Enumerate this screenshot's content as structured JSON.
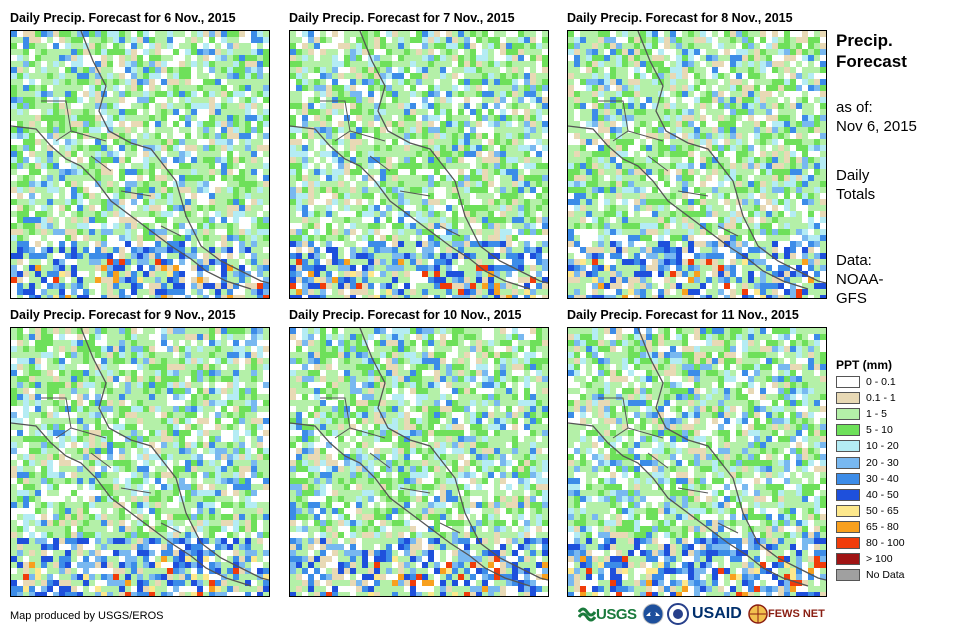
{
  "maps": [
    {
      "title": "Daily Precip. Forecast for 6 Nov., 2015"
    },
    {
      "title": "Daily Precip. Forecast for 7 Nov., 2015"
    },
    {
      "title": "Daily Precip. Forecast for 8 Nov., 2015"
    },
    {
      "title": "Daily Precip. Forecast for 9 Nov., 2015"
    },
    {
      "title": "Daily Precip. Forecast for 10 Nov., 2015"
    },
    {
      "title": "Daily Precip. Forecast for 11 Nov., 2015"
    }
  ],
  "sidebar": {
    "title_line1": "Precip.",
    "title_line2": "Forecast",
    "asof_line1": "as of:",
    "asof_line2": "Nov 6, 2015",
    "totals_line1": "Daily",
    "totals_line2": "Totals",
    "data_line1": "Data:",
    "data_line2": "NOAA-",
    "data_line3": "GFS"
  },
  "legend": {
    "title": "PPT (mm)",
    "items": [
      {
        "label": "0 - 0.1",
        "color": "#ffffff"
      },
      {
        "label": "0.1 - 1",
        "color": "#e8d9b5"
      },
      {
        "label": "1 - 5",
        "color": "#b4f0a8"
      },
      {
        "label": "5 - 10",
        "color": "#6ee05a"
      },
      {
        "label": "10 - 20",
        "color": "#b4ecf4"
      },
      {
        "label": "20 - 30",
        "color": "#78b8f0"
      },
      {
        "label": "30 - 40",
        "color": "#3c8ce8"
      },
      {
        "label": "40 - 50",
        "color": "#1e50dc"
      },
      {
        "label": "50 - 65",
        "color": "#fde88c"
      },
      {
        "label": "65 - 80",
        "color": "#f8a01e"
      },
      {
        "label": "80 - 100",
        "color": "#f03c0a"
      },
      {
        "label": "> 100",
        "color": "#a01414"
      },
      {
        "label": "No Data",
        "color": "#a0a0a0"
      }
    ]
  },
  "credit": "Map produced by USGS/EROS",
  "logos": {
    "usgs": "USGS",
    "usaid": "USAID",
    "fews": "FEWS NET"
  }
}
